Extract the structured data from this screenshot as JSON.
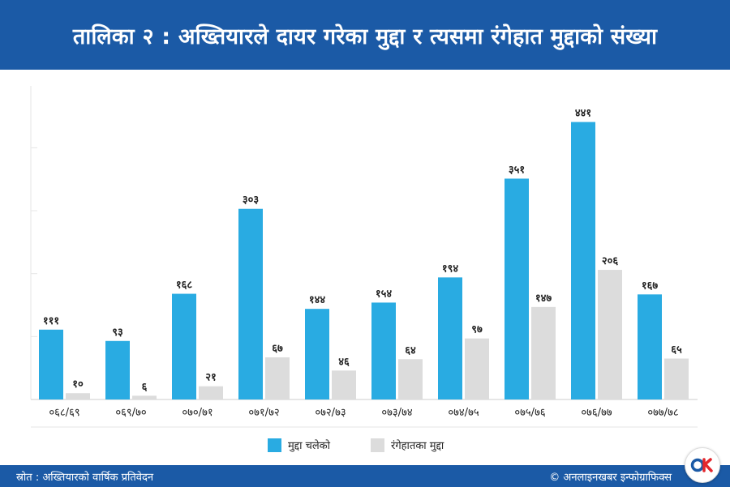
{
  "header": {
    "title": "तालिका २ : अख्तियारले दायर गरेका मुद्दा र त्यसमा रंगेहात मुद्दाको संख्या"
  },
  "chart_data": {
    "type": "bar",
    "categories": [
      "०६८/६९",
      "०६९/७०",
      "०७०/७१",
      "०७१/७२",
      "०७२/७३",
      "०७३/७४",
      "०७४/७५",
      "०७५/७६",
      "०७६/७७",
      "०७७/७८"
    ],
    "series": [
      {
        "name": "मुद्दा चलेको",
        "color": "#29abe2",
        "values": [
          111,
          93,
          168,
          303,
          144,
          154,
          194,
          351,
          441,
          167
        ],
        "labels": [
          "१११",
          "९३",
          "१६८",
          "३०३",
          "१४४",
          "१५४",
          "१९४",
          "३५१",
          "४४१",
          "१६७"
        ]
      },
      {
        "name": "रंगेहातका मुद्दा",
        "color": "#dcdcdc",
        "values": [
          10,
          6,
          21,
          67,
          46,
          64,
          97,
          147,
          206,
          65
        ],
        "labels": [
          "१०",
          "६",
          "२१",
          "६७",
          "४६",
          "६४",
          "९७",
          "१४७",
          "२०६",
          "६५"
        ]
      }
    ],
    "ylim": [
      0,
      500
    ],
    "grid": false,
    "legend_position": "bottom-center"
  },
  "footer": {
    "source": "स्रोत : अख्तियारको वार्षिक प्रतिवेदन",
    "credit": "© अनलाइनखबर इन्फोग्राफिक्स"
  },
  "logo": {
    "icon": "onlinekhabar-logo-icon",
    "text": "OK"
  }
}
